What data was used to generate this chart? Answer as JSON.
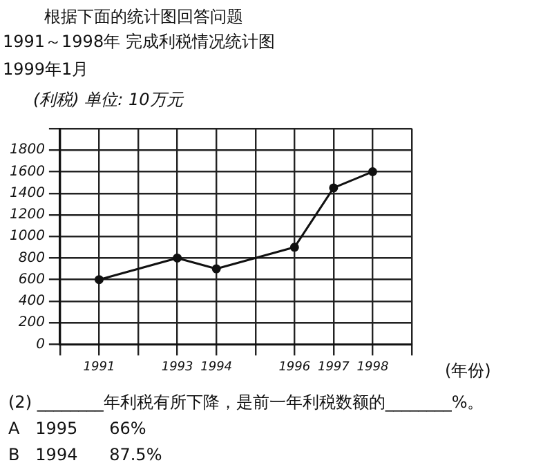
{
  "chart_data": {
    "type": "line",
    "title": "1991～1998年 完成利税情况统计图",
    "subtitle": "1999年1月",
    "ylabel": "(利税) 单位: 10万元",
    "xlabel": "(年份)",
    "x": [
      1991,
      1993,
      1994,
      1996,
      1997,
      1998
    ],
    "series": [
      {
        "color": "#111111",
        "values": [
          600,
          800,
          700,
          900,
          1450,
          1600
        ]
      }
    ],
    "xlim": [
      1990,
      1999
    ],
    "xticks": [
      {
        "value": 1990,
        "label": null
      },
      1991,
      {
        "value": 1992,
        "label": null
      },
      1993,
      1994,
      {
        "value": 1995,
        "label": null
      },
      1996,
      1997,
      1998,
      {
        "value": 1999,
        "label": null
      }
    ],
    "ylim": [
      0,
      2000
    ],
    "yticks": [
      0,
      200,
      400,
      600,
      800,
      1000,
      1200,
      1400,
      1600,
      1800,
      {
        "value": 2000,
        "label": null
      }
    ],
    "grid": true,
    "legend": false,
    "marker": "circle",
    "line_style": "solid",
    "annotations": [
      "根据下面的统计图回答问题",
      "(2) ________年利税有所下降，是前一年利税数额的________%。",
      "A   1995      66%",
      "B   1994      87.5%"
    ]
  }
}
